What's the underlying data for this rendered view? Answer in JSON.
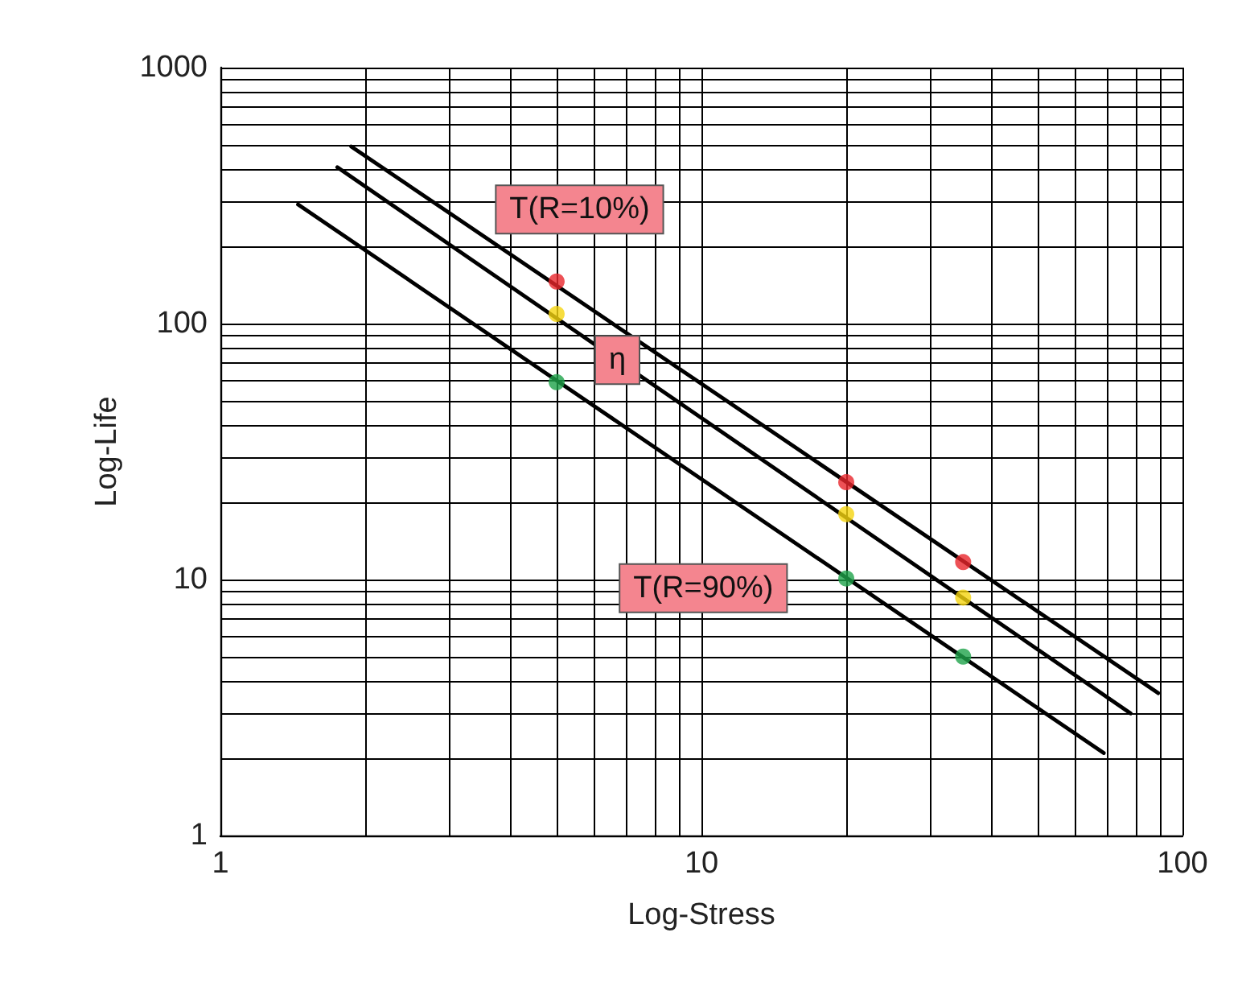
{
  "chart_data": {
    "type": "line",
    "xlabel": "Log-Stress",
    "ylabel": "Log-Life",
    "log": "xy",
    "grid": true,
    "legend": false,
    "marker": "none",
    "line_style": "solid",
    "xlim": [
      1,
      100
    ],
    "ylim": [
      1,
      1000
    ],
    "xticks": [
      1,
      {
        "value": 2,
        "label": null
      },
      {
        "value": 3,
        "label": null
      },
      {
        "value": 4,
        "label": null
      },
      {
        "value": 5,
        "label": null
      },
      {
        "value": 6,
        "label": null
      },
      {
        "value": 7,
        "label": null
      },
      {
        "value": 8,
        "label": null
      },
      {
        "value": 9,
        "label": null
      },
      10,
      {
        "value": 20,
        "label": null
      },
      {
        "value": 30,
        "label": null
      },
      {
        "value": 40,
        "label": null
      },
      {
        "value": 50,
        "label": null
      },
      {
        "value": 60,
        "label": null
      },
      {
        "value": 70,
        "label": null
      },
      {
        "value": 80,
        "label": null
      },
      {
        "value": 90,
        "label": null
      },
      100
    ],
    "yticks": [
      1,
      {
        "value": 2,
        "label": null
      },
      {
        "value": 3,
        "label": null
      },
      {
        "value": 4,
        "label": null
      },
      {
        "value": 5,
        "label": null
      },
      {
        "value": 6,
        "label": null
      },
      {
        "value": 7,
        "label": null
      },
      {
        "value": 8,
        "label": null
      },
      {
        "value": 9,
        "label": null
      },
      10,
      {
        "value": 20,
        "label": null
      },
      {
        "value": 30,
        "label": null
      },
      {
        "value": 40,
        "label": null
      },
      {
        "value": 50,
        "label": null
      },
      {
        "value": 60,
        "label": null
      },
      {
        "value": 70,
        "label": null
      },
      {
        "value": 80,
        "label": null
      },
      {
        "value": 90,
        "label": null
      },
      100,
      {
        "value": 200,
        "label": null
      },
      {
        "value": 300,
        "label": null
      },
      {
        "value": 400,
        "label": null
      },
      {
        "value": 500,
        "label": null
      },
      {
        "value": 600,
        "label": null
      },
      {
        "value": 700,
        "label": null
      },
      {
        "value": 800,
        "label": null
      },
      {
        "value": 900,
        "label": null
      },
      1000
    ],
    "series": [
      {
        "name": "T(R=10%)",
        "type": "line",
        "color": "#000000",
        "x": [
          1.87,
          89
        ],
        "values": [
          492,
          3.6
        ]
      },
      {
        "name": "η",
        "type": "line",
        "color": "#000000",
        "x": [
          1.75,
          78
        ],
        "values": [
          408,
          3.0
        ]
      },
      {
        "name": "T(R=90%)",
        "type": "line",
        "color": "#000000",
        "x": [
          1.45,
          68.6
        ],
        "values": [
          292,
          2.1
        ]
      },
      {
        "type": "scatter",
        "marker": "circle",
        "color": "#e8252c",
        "x": [
          5,
          20,
          35
        ],
        "values": [
          146,
          24,
          11.7
        ]
      },
      {
        "type": "scatter",
        "marker": "circle",
        "color": "#f5d40f",
        "x": [
          5,
          20,
          35
        ],
        "values": [
          109,
          18,
          8.5
        ]
      },
      {
        "type": "scatter",
        "marker": "circle",
        "color": "#1ea34a",
        "x": [
          5,
          20,
          35
        ],
        "values": [
          59,
          10.1,
          5.0
        ]
      }
    ]
  }
}
